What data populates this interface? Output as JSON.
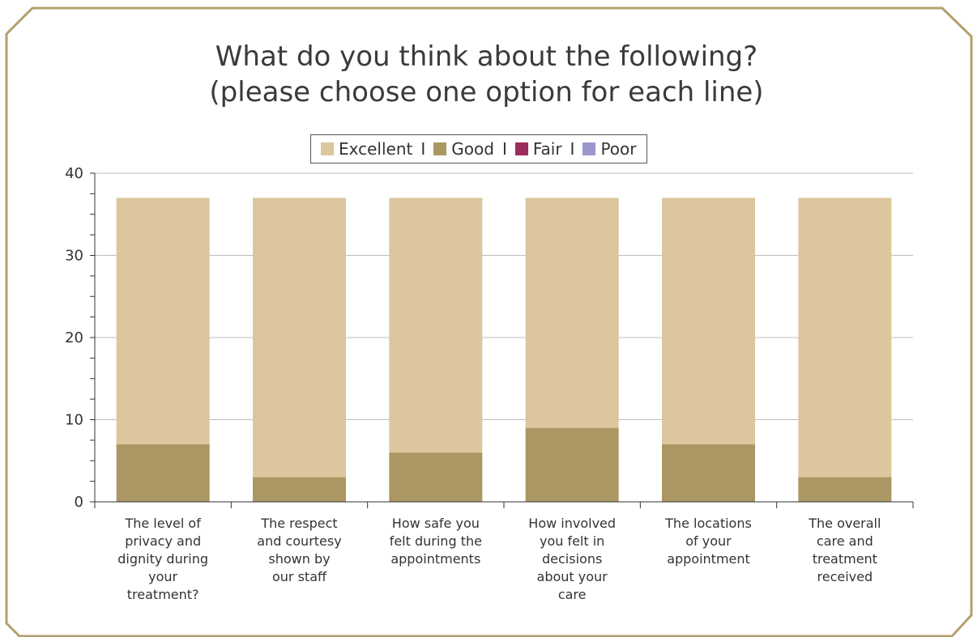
{
  "chart_data": {
    "type": "bar",
    "stacked": true,
    "title_lines": [
      "What do you think about the following?",
      "(please choose one option for each line)"
    ],
    "categories": [
      "The level of\nprivacy and\ndignity during\nyour\ntreatment?",
      "The respect\nand courtesy\nshown by\nour staff",
      "How safe you\nfelt during the\nappointments",
      "How involved\nyou felt in\ndecisions\nabout your\ncare",
      "The locations\nof your\nappointment",
      "The overall\ncare and\ntreatment\nreceived"
    ],
    "series": [
      {
        "name": "Poor",
        "color": "#9b97cc",
        "values": [
          0,
          0,
          0,
          0,
          0,
          0
        ]
      },
      {
        "name": "Fair",
        "color": "#9b2d5e",
        "values": [
          0,
          0,
          0,
          0,
          0,
          0
        ]
      },
      {
        "name": "Good",
        "color": "#ab9764",
        "values": [
          7,
          3,
          6,
          9,
          7,
          3
        ]
      },
      {
        "name": "Excellent",
        "color": "#dbc69d",
        "values": [
          30,
          34,
          31,
          28,
          30,
          34
        ]
      }
    ],
    "legend_order": [
      "Excellent",
      "Good",
      "Fair",
      "Poor"
    ],
    "legend_separator": "I",
    "ylim": [
      0,
      40
    ],
    "yticks": [
      0,
      10,
      20,
      30,
      40
    ],
    "grid": true,
    "legend_position": "top-center",
    "xlabel": "",
    "ylabel": ""
  },
  "colors": {
    "frame": "#b4a06e",
    "grid": "#bdbdbd",
    "axis": "#333333"
  }
}
